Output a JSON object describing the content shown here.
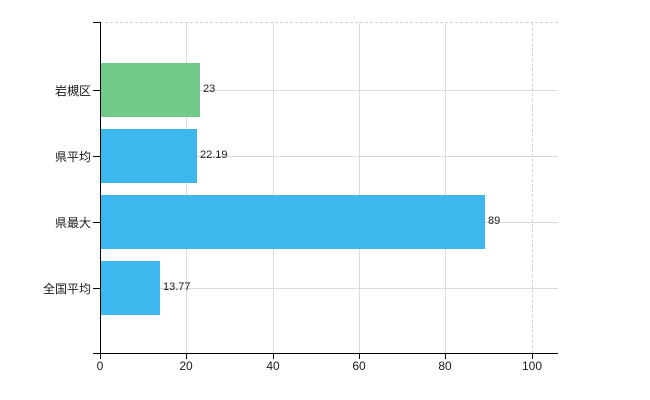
{
  "chart_data": {
    "type": "bar",
    "orientation": "horizontal",
    "title": "",
    "xlabel": "",
    "ylabel": "",
    "categories": [
      "岩槻区",
      "県平均",
      "県最大",
      "全国平均"
    ],
    "values": [
      23,
      22.19,
      89,
      13.77
    ],
    "value_labels": [
      "23",
      "22.19",
      "89",
      "13.77"
    ],
    "bar_colors": [
      "#72ca88",
      "#3eb7ee",
      "#3eb7ee",
      "#3eb7ee"
    ],
    "x_ticks": [
      0,
      20,
      40,
      60,
      80,
      100
    ],
    "x_tick_labels": [
      "0",
      "20",
      "40",
      "60",
      "80",
      "100"
    ],
    "xlim": [
      0,
      106.2
    ],
    "grid": true,
    "legend": false,
    "colors": {
      "grid": "#dadada",
      "dashed_grid": "#d2d2d2",
      "axis": "#000000",
      "text": "#1a1a1a",
      "background": "#ffffff",
      "bar_green": "#72ca88",
      "bar_blue": "#3eb7ee"
    }
  }
}
